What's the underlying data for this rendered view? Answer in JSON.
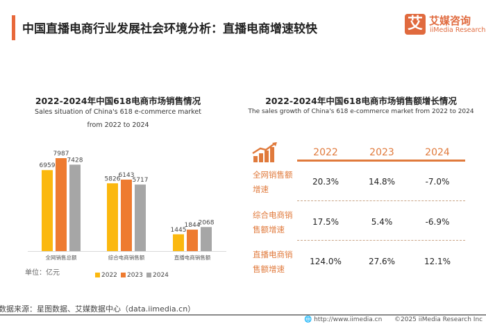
{
  "header": {
    "title": "中国直播电商行业发展社会环境分析：直播电商增速较快",
    "logo_mark": "艾",
    "logo_cn": "艾媒咨询",
    "logo_en": "iiMedia Research"
  },
  "colors": {
    "accent": "#e8683a",
    "y2022": "#fbb80f",
    "y2023": "#ee7b30",
    "y2024": "#a6a6a6",
    "table_accent": "#e07a3c"
  },
  "chart_data": [
    {
      "type": "bar",
      "title": "2022-2024年中国618电商市场销售情况",
      "subtitle_line1": "Sales situation of China's 618 e-commerce market",
      "subtitle_line2": "from 2022 to 2024",
      "categories": [
        "全网销售总额",
        "综合电商销售额",
        "直播电商销售额"
      ],
      "series": [
        {
          "name": "2022",
          "values": [
            6959,
            5826,
            1445
          ]
        },
        {
          "name": "2023",
          "values": [
            7987,
            6143,
            1844
          ]
        },
        {
          "name": "2024",
          "values": [
            7428,
            5717,
            2068
          ]
        }
      ],
      "unit_label": "单位：亿元",
      "ylim": [
        0,
        8000
      ],
      "grid": false,
      "legend": "bottom"
    },
    {
      "type": "table",
      "title": "2022-2024年中国618电商市场销售额增长情况",
      "subtitle": "The sales growth of China's 618 e-commerce market from 2022 to 2024",
      "icon": "growth-chart-icon",
      "columns": [
        "2022",
        "2023",
        "2024"
      ],
      "rows": [
        {
          "label": "全网销售额增速",
          "values": [
            "20.3%",
            "14.8%",
            "-7.0%"
          ]
        },
        {
          "label": "综合电商销售额增速",
          "values": [
            "17.5%",
            "5.4%",
            "-6.9%"
          ]
        },
        {
          "label": "直播电商销售额增速",
          "values": [
            "124.0%",
            "27.6%",
            "12.1%"
          ]
        }
      ]
    }
  ],
  "footer": {
    "source": "数据来源：星图数据、艾媒数据中心（data.iimedia.cn）",
    "url": "http://www.iimedia.cn",
    "copyright": "©2025  iiMedia Research Inc",
    "url_icon": "globe-icon"
  }
}
